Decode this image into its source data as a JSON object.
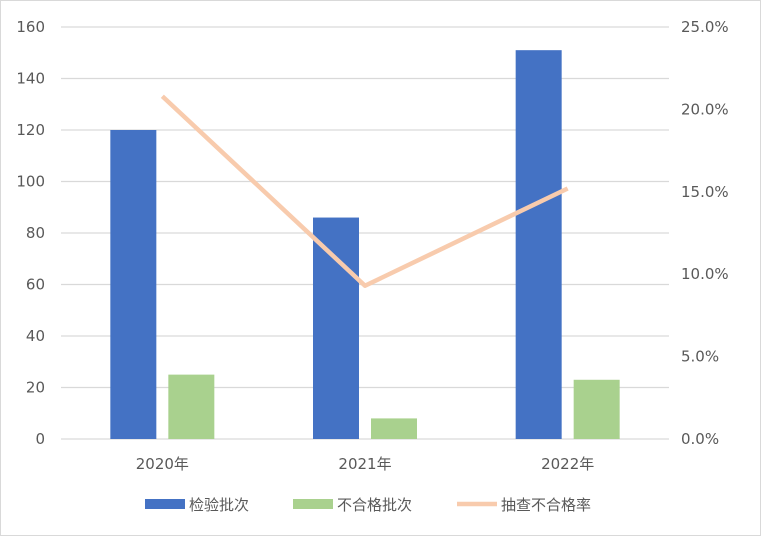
{
  "chart_data": {
    "type": "bar+line",
    "categories": [
      "2020年",
      "2021年",
      "2022年"
    ],
    "series": [
      {
        "name": "检验批次",
        "type": "bar",
        "axis": "left",
        "color": "#4472C4",
        "values": [
          120,
          86,
          151
        ]
      },
      {
        "name": "不合格批次",
        "type": "bar",
        "axis": "left",
        "color": "#A9D18E",
        "values": [
          25,
          8,
          23
        ]
      },
      {
        "name": "抽查不合格率",
        "type": "line",
        "axis": "right",
        "color": "#F8CBAD",
        "values": [
          20.8,
          9.3,
          15.2
        ]
      }
    ],
    "ylim": [
      0,
      160
    ],
    "yticks": [
      "0",
      "20",
      "40",
      "60",
      "80",
      "100",
      "120",
      "140",
      "160"
    ],
    "y2lim": [
      0,
      25
    ],
    "y2ticks": [
      "0.0%",
      "5.0%",
      "10.0%",
      "15.0%",
      "20.0%",
      "25.0%"
    ],
    "grid": true,
    "legend": "bottom"
  }
}
